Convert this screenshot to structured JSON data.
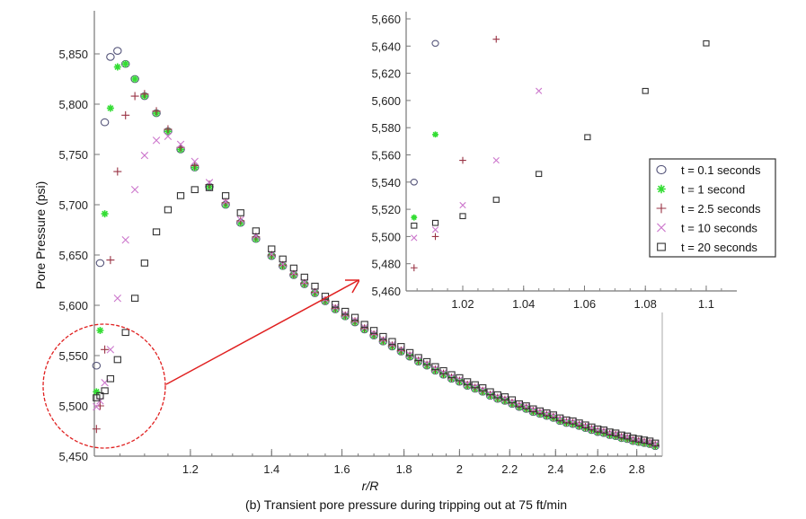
{
  "chart_data": [
    {
      "type": "scatter",
      "caption": "(b) Transient pore pressure during tripping out at 75 ft/min",
      "xlabel": "r/R",
      "ylabel": "Pore Pressure (psi)",
      "xscale": "log",
      "xlim": [
        1.0,
        2.94
      ],
      "ylim": [
        5450,
        5880
      ],
      "xticks": [
        1.2,
        1.4,
        1.6,
        1.8,
        2,
        2.2,
        2.4,
        2.6,
        2.8
      ],
      "xtick_labels": [
        "1.2",
        "1.4",
        "1.6",
        "1.8",
        "2",
        "2.2",
        "2.4",
        "2.6",
        "2.8"
      ],
      "yticks": [
        5450,
        5500,
        5550,
        5600,
        5650,
        5700,
        5750,
        5800,
        5850
      ],
      "ytick_labels": [
        "5,450",
        "5,500",
        "5,550",
        "5,600",
        "5,650",
        "5,700",
        "5,750",
        "5,800",
        "5,850"
      ],
      "grid": false,
      "legend_position": "inset-right",
      "x": [
        1.004,
        1.011,
        1.02,
        1.031,
        1.045,
        1.061,
        1.08,
        1.1,
        1.125,
        1.15,
        1.178,
        1.21,
        1.244,
        1.283,
        1.32,
        1.359,
        1.4,
        1.43,
        1.46,
        1.49,
        1.52,
        1.55,
        1.58,
        1.61,
        1.64,
        1.67,
        1.7,
        1.73,
        1.76,
        1.79,
        1.82,
        1.85,
        1.88,
        1.91,
        1.94,
        1.97,
        2.0,
        2.03,
        2.06,
        2.09,
        2.12,
        2.15,
        2.18,
        2.21,
        2.24,
        2.27,
        2.3,
        2.33,
        2.36,
        2.39,
        2.42,
        2.45,
        2.48,
        2.51,
        2.54,
        2.57,
        2.6,
        2.63,
        2.66,
        2.69,
        2.72,
        2.75,
        2.78,
        2.81,
        2.84,
        2.87,
        2.9
      ],
      "series": [
        {
          "name": "t = 0.1 seconds",
          "marker": "circle",
          "color": "#55557a",
          "values": [
            5540,
            5642,
            5782,
            5847,
            5853,
            5840,
            5825,
            5808,
            5791,
            5773,
            5755,
            5737,
            5718,
            5700,
            5682,
            5666,
            5649,
            5639,
            5630,
            5621,
            5612,
            5604,
            5596,
            5589,
            5583,
            5576,
            5570,
            5564,
            5559,
            5554,
            5549,
            5544,
            5540,
            5535,
            5531,
            5527,
            5524,
            5520,
            5517,
            5514,
            5510,
            5507,
            5505,
            5502,
            5499,
            5497,
            5494,
            5492,
            5490,
            5488,
            5485,
            5483,
            5482,
            5480,
            5478,
            5476,
            5474,
            5473,
            5471,
            5470,
            5468,
            5467,
            5465,
            5464,
            5463,
            5462,
            5460
          ]
        },
        {
          "name": "t = 1 second",
          "marker": "star",
          "color": "#33dd33",
          "values": [
            5514,
            5575,
            5691,
            5796,
            5837,
            5840,
            5825,
            5808,
            5791,
            5773,
            5755,
            5737,
            5718,
            5700,
            5682,
            5666,
            5649,
            5639,
            5630,
            5621,
            5612,
            5604,
            5596,
            5589,
            5583,
            5576,
            5570,
            5564,
            5559,
            5554,
            5549,
            5544,
            5540,
            5535,
            5531,
            5527,
            5524,
            5520,
            5517,
            5514,
            5510,
            5507,
            5505,
            5502,
            5499,
            5497,
            5494,
            5492,
            5490,
            5488,
            5485,
            5483,
            5482,
            5480,
            5478,
            5476,
            5474,
            5473,
            5471,
            5470,
            5468,
            5467,
            5465,
            5464,
            5463,
            5462,
            5460
          ]
        },
        {
          "name": "t = 2.5 seconds",
          "marker": "plus",
          "color": "#993344",
          "values": [
            5477,
            5500,
            5556,
            5645,
            5733,
            5789,
            5808,
            5810,
            5793,
            5775,
            5757,
            5739,
            5720,
            5702,
            5684,
            5668,
            5650,
            5640,
            5631,
            5622,
            5613,
            5605,
            5597,
            5590,
            5584,
            5577,
            5571,
            5565,
            5560,
            5555,
            5550,
            5545,
            5541,
            5536,
            5532,
            5528,
            5525,
            5521,
            5518,
            5515,
            5511,
            5508,
            5506,
            5503,
            5500,
            5498,
            5495,
            5493,
            5491,
            5489,
            5486,
            5484,
            5483,
            5481,
            5479,
            5477,
            5475,
            5474,
            5472,
            5471,
            5469,
            5468,
            5466,
            5465,
            5464,
            5463,
            5461
          ]
        },
        {
          "name": "t = 10 seconds",
          "marker": "x",
          "color": "#cc77cc",
          "values": [
            5499,
            5505,
            5523,
            5556,
            5607,
            5665,
            5715,
            5749,
            5764,
            5768,
            5760,
            5743,
            5722,
            5703,
            5685,
            5669,
            5651,
            5641,
            5632,
            5623,
            5614,
            5606,
            5598,
            5591,
            5585,
            5578,
            5572,
            5566,
            5561,
            5556,
            5551,
            5546,
            5542,
            5537,
            5533,
            5529,
            5526,
            5522,
            5519,
            5516,
            5512,
            5509,
            5507,
            5504,
            5501,
            5499,
            5496,
            5494,
            5492,
            5490,
            5487,
            5485,
            5484,
            5482,
            5480,
            5478,
            5476,
            5475,
            5473,
            5472,
            5470,
            5469,
            5467,
            5466,
            5465,
            5464,
            5462
          ]
        },
        {
          "name": "t = 20 seconds",
          "marker": "square",
          "color": "#333333",
          "values": [
            5508,
            5510,
            5515,
            5527,
            5546,
            5573,
            5607,
            5642,
            5673,
            5695,
            5709,
            5715,
            5717,
            5709,
            5692,
            5674,
            5656,
            5646,
            5637,
            5628,
            5619,
            5609,
            5601,
            5594,
            5588,
            5581,
            5575,
            5569,
            5564,
            5559,
            5553,
            5548,
            5544,
            5539,
            5535,
            5531,
            5528,
            5524,
            5521,
            5518,
            5514,
            5511,
            5509,
            5506,
            5502,
            5500,
            5497,
            5495,
            5493,
            5491,
            5488,
            5486,
            5485,
            5483,
            5481,
            5479,
            5477,
            5476,
            5474,
            5473,
            5471,
            5470,
            5468,
            5467,
            5466,
            5465,
            5463
          ]
        }
      ]
    },
    {
      "type": "scatter",
      "role": "zoomed inset",
      "xlim": [
        1.0014,
        1.109
      ],
      "ylim": [
        5455,
        5664
      ],
      "xticks": [
        1.02,
        1.04,
        1.06,
        1.08,
        1.1
      ],
      "xtick_labels": [
        "1.02",
        "1.04",
        "1.06",
        "1.08",
        "1.1"
      ],
      "yticks": [
        5460,
        5480,
        5500,
        5520,
        5540,
        5560,
        5580,
        5600,
        5620,
        5640,
        5660
      ],
      "ytick_labels": [
        "5,460",
        "5,480",
        "5,500",
        "5,520",
        "5,540",
        "5,560",
        "5,580",
        "5,600",
        "5,620",
        "5,640",
        "5,660"
      ],
      "annotation_color": "#e02020"
    }
  ]
}
